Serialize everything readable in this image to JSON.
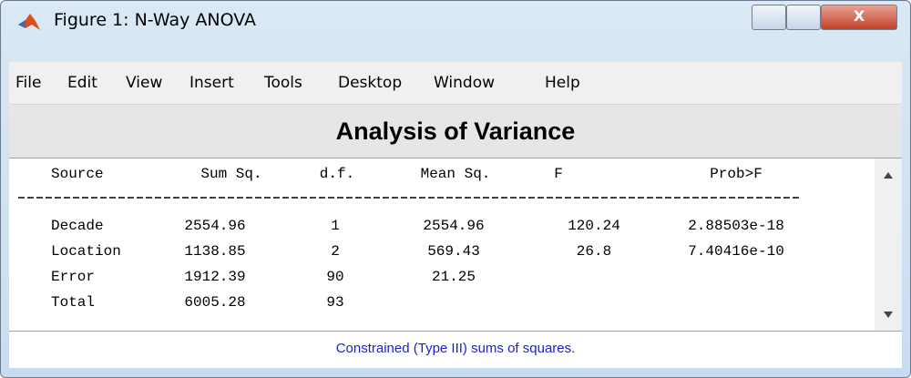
{
  "window": {
    "title": "Figure 1: N-Way ANOVA"
  },
  "menu": [
    "File",
    "Edit",
    "View",
    "Insert",
    "Tools",
    "Desktop",
    "Window",
    "Help"
  ],
  "heading": "Analysis of Variance",
  "table": {
    "header": [
      "Source",
      "Sum Sq.",
      "d.f.",
      "Mean Sq.",
      "F",
      "Prob>F"
    ],
    "rows": [
      [
        "Decade",
        "2554.96",
        "1",
        "2554.96",
        "120.24",
        "2.88503e-18"
      ],
      [
        "Location",
        "1138.85",
        "2",
        "569.43",
        "26.8",
        "7.40416e-10"
      ],
      [
        "Error",
        "1912.39",
        "90",
        "21.25"
      ],
      [
        "Total",
        "6005.28",
        "93"
      ]
    ]
  },
  "footer": "Constrained (Type III) sums of squares."
}
